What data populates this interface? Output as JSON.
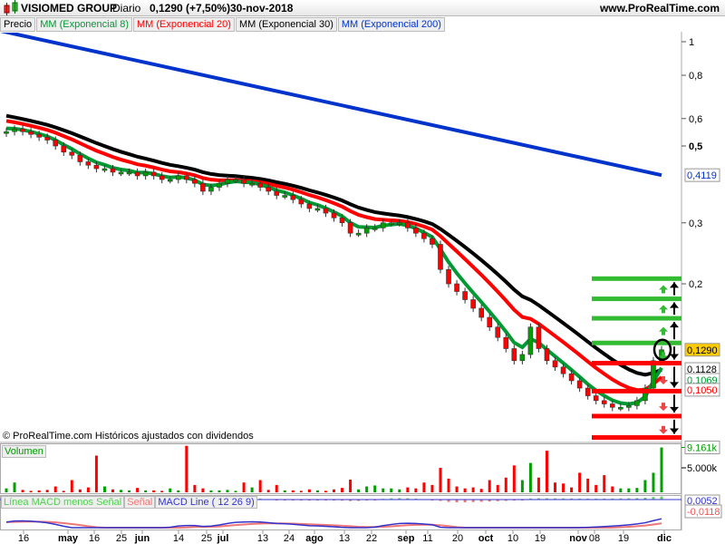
{
  "header": {
    "title": "VISIOMED GROUP",
    "period": "Diario",
    "price": "0,1290 (+7,50%)",
    "date": "30-nov-2018",
    "site": "www.ProRealTime.com"
  },
  "legend": {
    "precio": "Precio",
    "ema8": "MM (Exponencial 8)",
    "ema20": "MM (Exponencial 20)",
    "ema30": "MM (Exponencial 30)",
    "ema200": "MM (Exponencial 200)"
  },
  "colors": {
    "up": "#00a000",
    "down": "#ff0000",
    "ema8": "#009933",
    "ema20": "#ff0000",
    "ema30": "#000000",
    "ema200": "#0033cc",
    "current": "#ffcc00"
  },
  "footer_note": "© ProRealTime.com  Históricos ajustados con dividendos",
  "volume_panel": {
    "label": "Volumen",
    "last": "9.161k",
    "tick": "5.000k"
  },
  "macd_panel": {
    "hist_label": "Línea MACD menos Señal",
    "signal_label": "Señal",
    "macd_label": "MACD Line ( 12 26 9)",
    "macd_value": "0,0052",
    "signal_value": "-0,0118"
  },
  "chart_data": {
    "type": "candlestick",
    "yscale": "log",
    "price_ticks": [
      "1",
      "0,8",
      "0,6",
      "0,5",
      "0,3",
      "0,2"
    ],
    "price_tick_values": [
      1,
      0.8,
      0.6,
      0.5,
      0.3,
      0.2
    ],
    "labels": {
      "last": "0,1290",
      "ema30": "0.1128",
      "ema8": "0.1069",
      "ema20": "0,1050",
      "ema200": "0,4119"
    },
    "x_ticks": [
      "16",
      "may",
      "16",
      "25",
      "jun",
      "14",
      "25",
      "jul",
      "13",
      "24",
      "ago",
      "13",
      "22",
      "sep",
      "11",
      "20",
      "oct",
      "10",
      "19",
      "nov",
      "08",
      "19",
      "dic"
    ],
    "x_ticks_bold": [
      false,
      true,
      false,
      false,
      true,
      false,
      false,
      true,
      false,
      false,
      true,
      false,
      false,
      true,
      false,
      false,
      true,
      false,
      false,
      true,
      false,
      false,
      true
    ],
    "closes": [
      0.55,
      0.56,
      0.55,
      0.54,
      0.53,
      0.52,
      0.5,
      0.48,
      0.47,
      0.45,
      0.44,
      0.43,
      0.43,
      0.42,
      0.42,
      0.42,
      0.41,
      0.42,
      0.41,
      0.4,
      0.4,
      0.41,
      0.4,
      0.39,
      0.37,
      0.38,
      0.39,
      0.4,
      0.4,
      0.39,
      0.39,
      0.38,
      0.37,
      0.36,
      0.36,
      0.35,
      0.34,
      0.33,
      0.33,
      0.32,
      0.31,
      0.3,
      0.28,
      0.28,
      0.29,
      0.29,
      0.3,
      0.3,
      0.3,
      0.29,
      0.28,
      0.27,
      0.26,
      0.22,
      0.2,
      0.19,
      0.18,
      0.17,
      0.16,
      0.15,
      0.14,
      0.13,
      0.12,
      0.125,
      0.15,
      0.13,
      0.12,
      0.115,
      0.11,
      0.105,
      0.1,
      0.095,
      0.092,
      0.09,
      0.088,
      0.088,
      0.089,
      0.092,
      0.1,
      0.12,
      0.129
    ],
    "volumes_k": [
      0.8,
      2,
      0.5,
      0.3,
      0.4,
      0.5,
      1.2,
      0.3,
      2.5,
      0.6,
      1.0,
      7.5,
      1.2,
      0.6,
      0.5,
      0.4,
      0.9,
      0.4,
      0.4,
      0.3,
      0.8,
      0.4,
      9.5,
      1.5,
      0.8,
      0.4,
      0.4,
      0.5,
      0.3,
      2.0,
      1.0,
      2.5,
      0.5,
      1.5,
      0.4,
      0.4,
      0.3,
      0.6,
      0.4,
      0.3,
      0.6,
      0.9,
      2.6,
      0.6,
      1.2,
      1.4,
      0.8,
      0.8,
      0.6,
      1.0,
      0.8,
      2.0,
      1.5,
      5.0,
      2.8,
      1.2,
      0.8,
      1.0,
      0.7,
      2.5,
      1.5,
      3.0,
      5.5,
      2.5,
      6.0,
      3.0,
      8.5,
      2.0,
      1.8,
      1.0,
      4.0,
      2.8,
      1.5,
      3.5,
      1.2,
      0.8,
      0.8,
      0.9,
      2.5,
      4.0,
      9.161
    ],
    "ema200_range": [
      1.05,
      0.4119
    ],
    "support_resistance": {
      "green": [
        0.207,
        0.181,
        0.159,
        0.135
      ],
      "red": [
        0.118,
        0.098,
        0.083,
        0.072
      ]
    }
  }
}
